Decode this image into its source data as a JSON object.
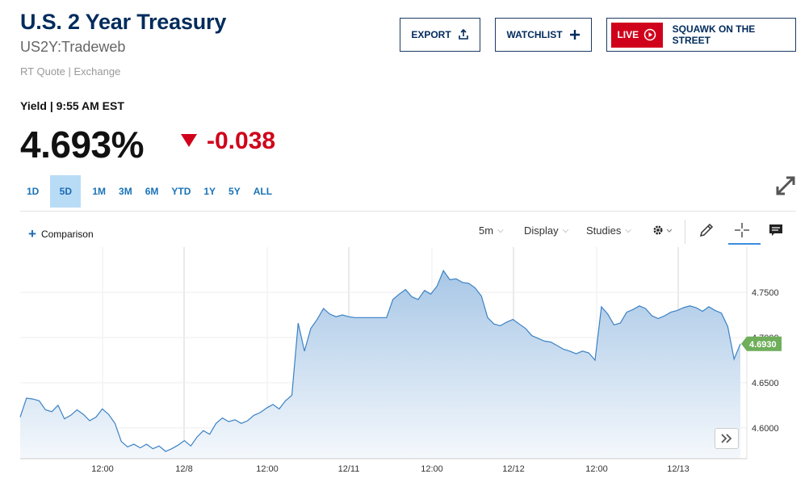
{
  "header": {
    "title": "U.S. 2 Year Treasury",
    "symbol": "US2Y:Tradeweb",
    "quote_source": "RT Quote | Exchange"
  },
  "actions": {
    "export_label": "EXPORT",
    "watchlist_label": "WATCHLIST",
    "live_label": "LIVE",
    "squawk_label": "SQUAWK ON THE STREET"
  },
  "quote": {
    "yield_label": "Yield | 9:55 AM EST",
    "price": "4.693%",
    "change": "-0.038",
    "change_direction": "down",
    "change_color": "#d0021b"
  },
  "ranges": {
    "tabs": [
      "1D",
      "5D",
      "1M",
      "3M",
      "6M",
      "YTD",
      "1Y",
      "5Y",
      "ALL"
    ],
    "active": "5D"
  },
  "toolbar": {
    "comparison_label": "Comparison",
    "interval_label": "5m",
    "display_label": "Display",
    "studies_label": "Studies",
    "tools": [
      "gear-icon",
      "pencil-icon",
      "crosshair-icon",
      "comment-icon"
    ]
  },
  "chart_data": {
    "type": "area",
    "x_tick_labels": [
      "12:00",
      "12/8",
      "12:00",
      "12/11",
      "12:00",
      "12/12",
      "12:00",
      "12/13"
    ],
    "y_tick_labels": [
      "4.7500",
      "4.7000",
      "4.6500",
      "4.6000"
    ],
    "ylim": [
      4.566,
      4.8
    ],
    "grid": true,
    "current_value_label": "4.6930",
    "line_color": "#3b82c4",
    "label_color": "#6fae5a",
    "series": [
      {
        "values": [
          4.612,
          4.633,
          4.632,
          4.63,
          4.62,
          4.618,
          4.625,
          4.61,
          4.614,
          4.62,
          4.615,
          4.608,
          4.612,
          4.621,
          4.615,
          4.605,
          4.585,
          4.579,
          4.582,
          4.578,
          4.582,
          4.577,
          4.58,
          4.574,
          4.577,
          4.581,
          4.586,
          4.58,
          4.59,
          4.597,
          4.593,
          4.605,
          4.611,
          4.607,
          4.609,
          4.605,
          4.608,
          4.614,
          4.617,
          4.622,
          4.626,
          4.621,
          4.63,
          4.636,
          4.716,
          4.685,
          4.71,
          4.72,
          4.732,
          4.726,
          4.723,
          4.725,
          4.723,
          4.722,
          4.722,
          4.722,
          4.722,
          4.722,
          4.722,
          4.742,
          4.748,
          4.753,
          4.745,
          4.742,
          4.752,
          4.748,
          4.757,
          4.774,
          4.764,
          4.765,
          4.761,
          4.76,
          4.755,
          4.746,
          4.722,
          4.715,
          4.713,
          4.717,
          4.72,
          4.715,
          4.71,
          4.702,
          4.699,
          4.696,
          4.695,
          4.691,
          4.687,
          4.685,
          4.682,
          4.685,
          4.683,
          4.675,
          4.734,
          4.726,
          4.714,
          4.716,
          4.728,
          4.731,
          4.735,
          4.732,
          4.724,
          4.721,
          4.724,
          4.728,
          4.73,
          4.733,
          4.735,
          4.733,
          4.729,
          4.734,
          4.73,
          4.727,
          4.712,
          4.676,
          4.693
        ]
      }
    ]
  }
}
